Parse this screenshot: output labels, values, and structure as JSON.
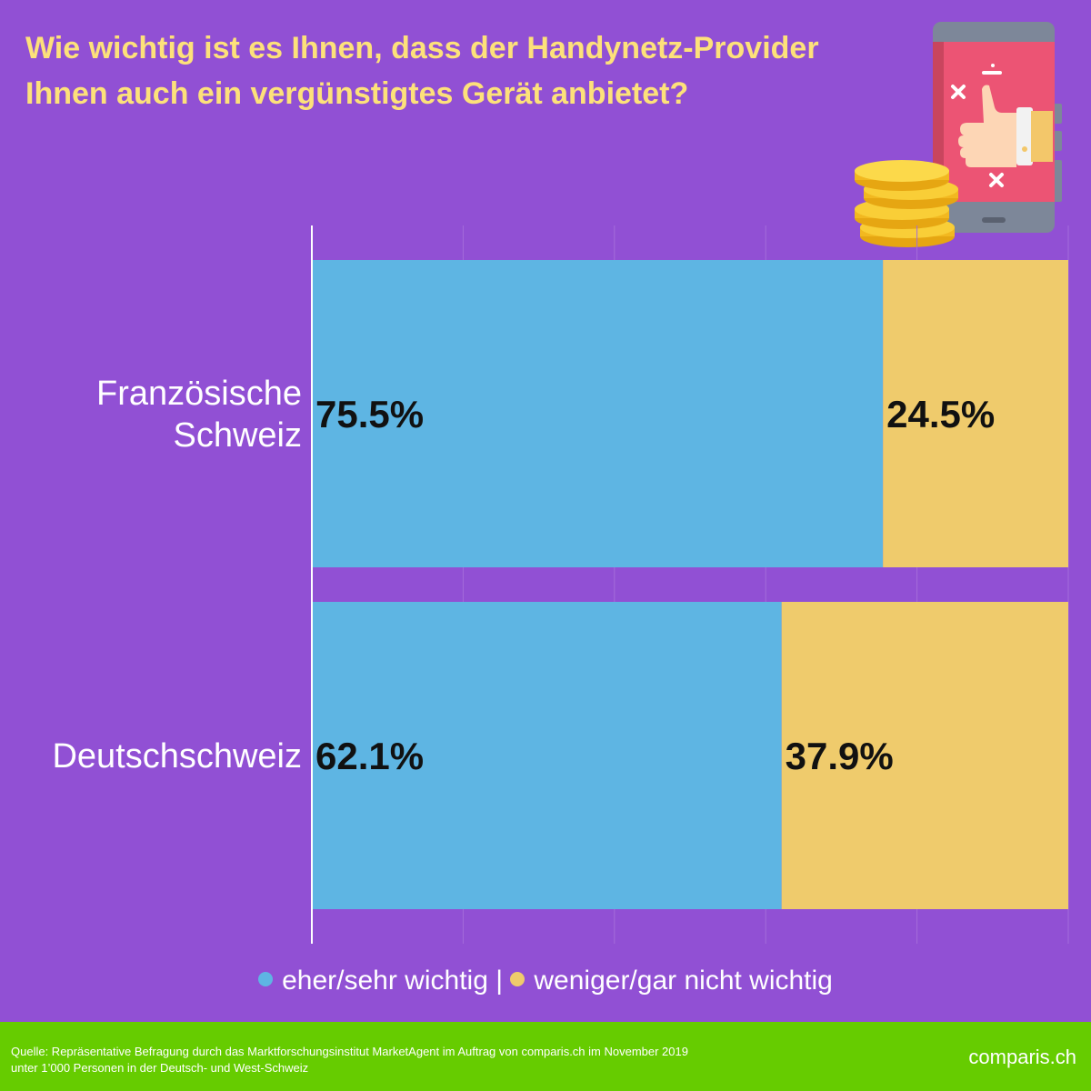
{
  "title": {
    "line1": "Wie wichtig ist es Ihnen, dass der Handynetz-Provider",
    "line2": "Ihnen auch ein vergünstigtes Gerät anbietet?"
  },
  "colors": {
    "background": "#9150D4",
    "title": "#FDE17A",
    "series_important": "#5EB5E3",
    "series_not_important": "#EFCB6C",
    "footer": "#66CC00"
  },
  "chart_data": {
    "type": "bar",
    "orientation": "horizontal",
    "stacked": true,
    "categories": [
      [
        "Französische",
        "Schweiz"
      ],
      [
        "Deutschschweiz"
      ]
    ],
    "series": [
      {
        "name": "eher/sehr wichtig",
        "values": [
          75.5,
          62.1
        ],
        "labels": [
          "75.5%",
          "62.1%"
        ]
      },
      {
        "name": "weniger/gar nicht wichtig",
        "values": [
          24.5,
          37.9
        ],
        "labels": [
          "24.5%",
          "37.9%"
        ]
      }
    ],
    "xlim": [
      0,
      100
    ],
    "grid": true,
    "legend_position": "bottom"
  },
  "legend": {
    "item1": "eher/sehr wichtig",
    "separator": "|",
    "item2": "weniger/gar nicht wichtig"
  },
  "footer": {
    "source_line1": "Quelle: Repräsentative Befragung durch das Marktforschungsinstitut MarketAgent im Auftrag von comparis.ch im November 2019",
    "source_line2": "unter 1’000 Personen in der Deutsch- und West-Schweiz",
    "brand": "comparis.ch"
  },
  "icons": [
    "smartphone-thumbs-up-icon",
    "coin-stack-icon"
  ]
}
